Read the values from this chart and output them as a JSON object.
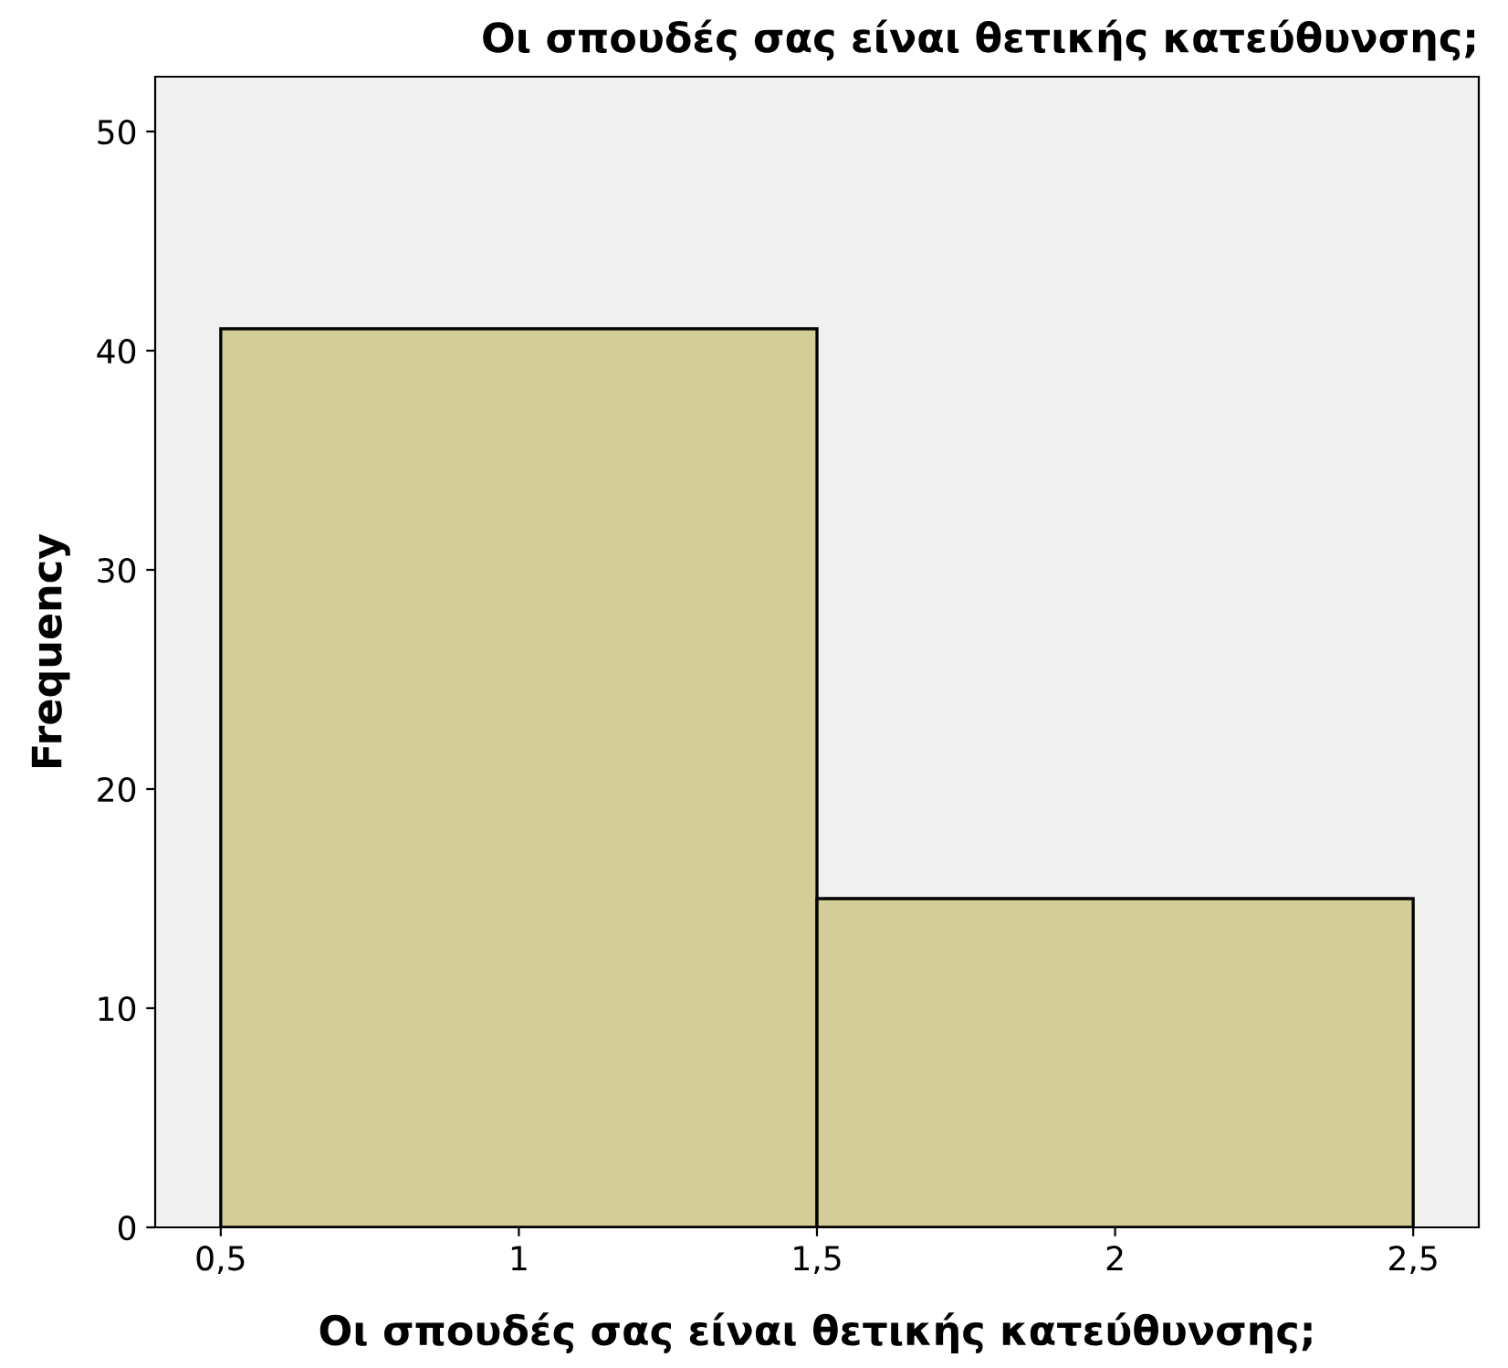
{
  "chart_data": {
    "type": "histogram",
    "title": "Οι σπουδές σας είναι θετικής κατεύθυνσης;",
    "xlabel": "Οι σπουδές σας είναι θετικής κατεύθυνσης;",
    "ylabel": "Frequency",
    "bins": [
      0.5,
      1.5,
      2.5
    ],
    "values": [
      41,
      15
    ],
    "color": "#d3ce97",
    "xlim": [
      0.39,
      2.61
    ],
    "xticks": [
      {
        "value": 0.5,
        "label": "0,5"
      },
      1,
      {
        "value": 1.5,
        "label": "1,5"
      },
      2,
      {
        "value": 2.5,
        "label": "2,5"
      }
    ],
    "ylim": [
      0,
      52.5
    ],
    "yticks": [
      0,
      10,
      20,
      30,
      40,
      50
    ],
    "grid": false
  }
}
